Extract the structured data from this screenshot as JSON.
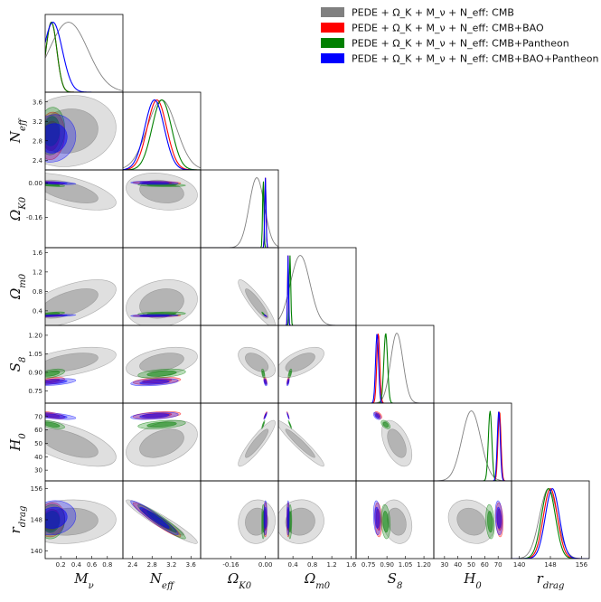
{
  "chart_data": {
    "type": "corner-plot",
    "title": "",
    "parameters": [
      {
        "key": "Mnu",
        "label": "M_ν",
        "range": [
          0,
          1.0
        ],
        "ticks": [
          "0.2",
          "0.4",
          "0.6",
          "0.8"
        ]
      },
      {
        "key": "Neff",
        "label": "N_eff",
        "range": [
          2.2,
          3.8
        ],
        "ticks": [
          "2.4",
          "2.8",
          "3.2",
          "3.6"
        ]
      },
      {
        "key": "OmK0",
        "label": "Ω_K0",
        "range": [
          -0.3,
          0.06
        ],
        "ticks": [
          "-0.16",
          "0.00"
        ]
      },
      {
        "key": "Omm0",
        "label": "Ω_m0",
        "range": [
          0.1,
          1.7
        ],
        "ticks": [
          "0.4",
          "0.8",
          "1.2",
          "1.6"
        ]
      },
      {
        "key": "S8",
        "label": "S_8",
        "range": [
          0.65,
          1.28
        ],
        "ticks": [
          "0.75",
          "0.90",
          "1.05",
          "1.20"
        ]
      },
      {
        "key": "H0",
        "label": "H_0",
        "range": [
          22,
          80
        ],
        "ticks": [
          "30",
          "40",
          "50",
          "60",
          "70"
        ]
      },
      {
        "key": "rdrag",
        "label": "r_drag",
        "range": [
          138,
          158
        ],
        "ticks": [
          "140",
          "148",
          "156"
        ]
      }
    ],
    "series": [
      {
        "name": "PEDE + Ω_K + M_ν + N_eff: CMB",
        "color": "#808080",
        "mean": {
          "Mnu": 0.3,
          "Neff": 3.0,
          "OmK0": -0.04,
          "Omm0": 0.55,
          "S8": 0.98,
          "H0": 50,
          "rdrag": 147.5
        },
        "sigma": {
          "Mnu": 0.25,
          "Neff": 0.3,
          "OmK0": 0.035,
          "Omm0": 0.2,
          "S8": 0.05,
          "H0": 7,
          "rdrag": 2.3
        }
      },
      {
        "name": "PEDE + Ω_K + M_ν + N_eff: CMB+BAO",
        "color": "#ff0000",
        "mean": {
          "Mnu": 0.08,
          "Neff": 2.9,
          "OmK0": 0.0,
          "Omm0": 0.3,
          "S8": 0.83,
          "H0": 71,
          "rdrag": 148
        },
        "sigma": {
          "Mnu": 0.07,
          "Neff": 0.2,
          "OmK0": 0.003,
          "Omm0": 0.01,
          "S8": 0.012,
          "H0": 1.1,
          "rdrag": 1.8
        }
      },
      {
        "name": "PEDE + Ω_K + M_ν + N_eff: CMB+Pantheon",
        "color": "#008000",
        "mean": {
          "Mnu": 0.08,
          "Neff": 3.0,
          "OmK0": -0.01,
          "Omm0": 0.34,
          "S8": 0.89,
          "H0": 64,
          "rdrag": 147.5
        },
        "sigma": {
          "Mnu": 0.07,
          "Neff": 0.2,
          "OmK0": 0.003,
          "Omm0": 0.015,
          "S8": 0.015,
          "H0": 1.3,
          "rdrag": 1.8
        }
      },
      {
        "name": "PEDE + Ω_K + M_ν + N_eff: CMB+BAO+Pantheon",
        "color": "#0000ff",
        "mean": {
          "Mnu": 0.1,
          "Neff": 2.85,
          "OmK0": 0.0,
          "Omm0": 0.3,
          "S8": 0.82,
          "H0": 70.5,
          "rdrag": 148.5
        },
        "sigma": {
          "Mnu": 0.12,
          "Neff": 0.2,
          "OmK0": 0.003,
          "Omm0": 0.01,
          "S8": 0.012,
          "H0": 1.1,
          "rdrag": 1.8
        }
      }
    ],
    "correlations": {
      "Mnu-Neff": 0.1,
      "Mnu-OmK0": -0.6,
      "Mnu-Omm0": 0.6,
      "Mnu-S8": 0.5,
      "Mnu-H0": -0.6,
      "Mnu-rdrag": 0.1,
      "Neff-OmK0": -0.2,
      "Neff-Omm0": 0.2,
      "Neff-S8": 0.4,
      "Neff-H0": 0.4,
      "Neff-rdrag": -0.95,
      "OmK0-Omm0": -0.9,
      "OmK0-S8": -0.5,
      "OmK0-H0": 0.9,
      "OmK0-rdrag": 0.05,
      "Omm0-S8": 0.6,
      "Omm0-H0": -0.95,
      "Omm0-rdrag": 0.05,
      "S8-H0": -0.5,
      "S8-rdrag": -0.2,
      "H0-rdrag": -0.2
    },
    "legend_position": "top-right"
  }
}
